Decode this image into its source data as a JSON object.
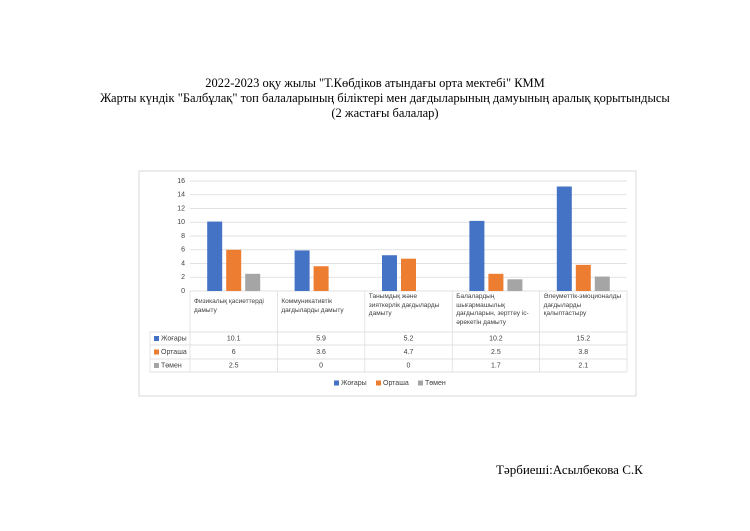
{
  "header": {
    "lines": [
      "2022-2023 оқу жылы \"Т.Көбдіков атындағы орта мектебі\" КММ",
      "Жарты күндік \"Балбұлақ\" топ балаларының біліктері мен  дағдыларының дамуының аралық қорытындысы (2 жастағы балалар)"
    ]
  },
  "chart_data": {
    "type": "bar",
    "categories": [
      "Физикалық қасиеттерді дамыту",
      "Коммуникативтік дағдыларды дамыту",
      "Танымдық және зияткерлік дағдыларды дамыту",
      "Балалардың шығармашылық дағдыларын, зерттеу іс-әрекетін дамыту",
      "Әлеуметтік-эмоционалды дағдыларды қалыптастыру"
    ],
    "series": [
      {
        "name": "Жоғары",
        "color": "#4472c4",
        "values": [
          10.1,
          5.9,
          5.2,
          10.2,
          15.2
        ]
      },
      {
        "name": "Орташа",
        "color": "#ed7d31",
        "values": [
          6,
          3.6,
          4.7,
          2.5,
          3.8
        ]
      },
      {
        "name": "Төмен",
        "color": "#a5a5a5",
        "values": [
          2.5,
          0,
          0,
          1.7,
          2.1
        ]
      }
    ],
    "ylim": [
      0,
      16
    ],
    "yticks": [
      0,
      2,
      4,
      6,
      8,
      10,
      12,
      14,
      16
    ],
    "grid": true,
    "data_table": true,
    "legend": "bottom"
  },
  "footer": {
    "signature": "Тәрбиеші:Асылбекова С.К"
  }
}
